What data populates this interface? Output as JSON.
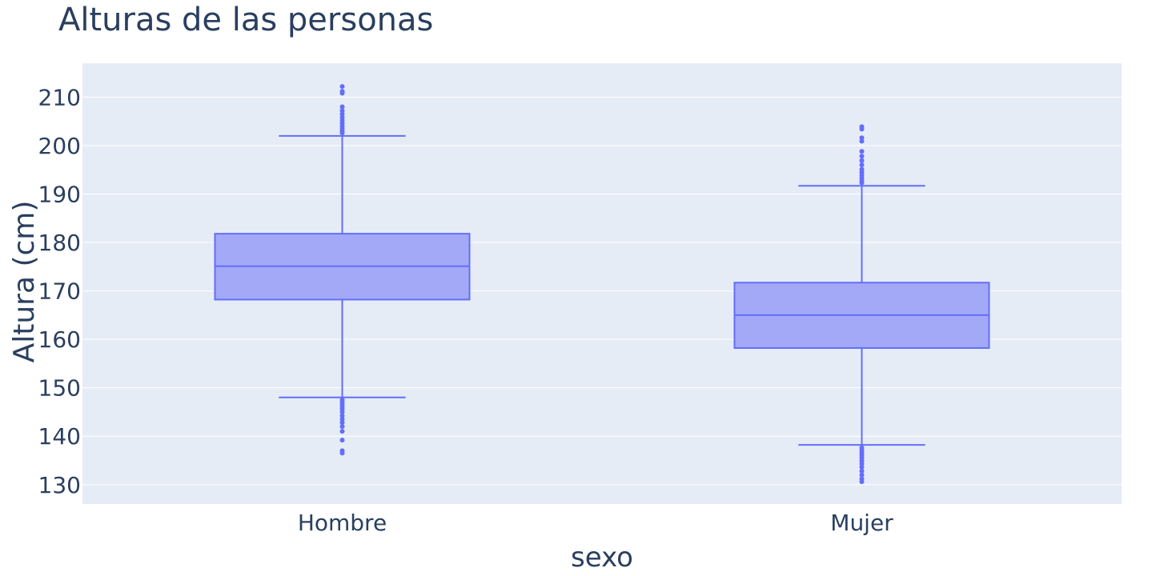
{
  "chart_data": {
    "type": "box",
    "title": "Alturas de las personas",
    "xlabel": "sexo",
    "ylabel": "Altura (cm)",
    "ylim": [
      126,
      217
    ],
    "yticks": [
      130,
      140,
      150,
      160,
      170,
      180,
      190,
      200,
      210
    ],
    "grid": true,
    "categories": [
      "Hombre",
      "Mujer"
    ],
    "boxes": [
      {
        "category": "Hombre",
        "lower_whisker": 148,
        "q1": 168.2,
        "median": 175.1,
        "q3": 181.8,
        "upper_whisker": 202,
        "outliers": [
          136.5,
          137,
          139.2,
          141,
          142,
          142.8,
          143.5,
          144.2,
          145,
          145.6,
          146.1,
          146.6,
          147.1,
          147.5,
          202.6,
          203,
          203.5,
          204,
          204.6,
          205.2,
          205.8,
          206.5,
          207.2,
          208,
          210.8,
          211.2,
          212.2
        ]
      },
      {
        "category": "Mujer",
        "lower_whisker": 138.2,
        "q1": 158.2,
        "median": 165,
        "q3": 171.7,
        "upper_whisker": 191.7,
        "outliers": [
          130.6,
          131.2,
          132,
          132.8,
          133.6,
          134.3,
          134.9,
          135.5,
          136,
          136.5,
          137,
          137.6,
          192.3,
          192.8,
          193.3,
          193.9,
          194.5,
          195.1,
          196,
          196.9,
          197.8,
          198.8,
          200.9,
          201.6,
          203.4,
          203.9
        ]
      }
    ],
    "colors": {
      "box_fill": "#a3a9f6",
      "box_line": "#636efa",
      "plot_bg": "#e5ecf6",
      "grid": "#ffffff",
      "text": "#2a3f5f"
    }
  }
}
